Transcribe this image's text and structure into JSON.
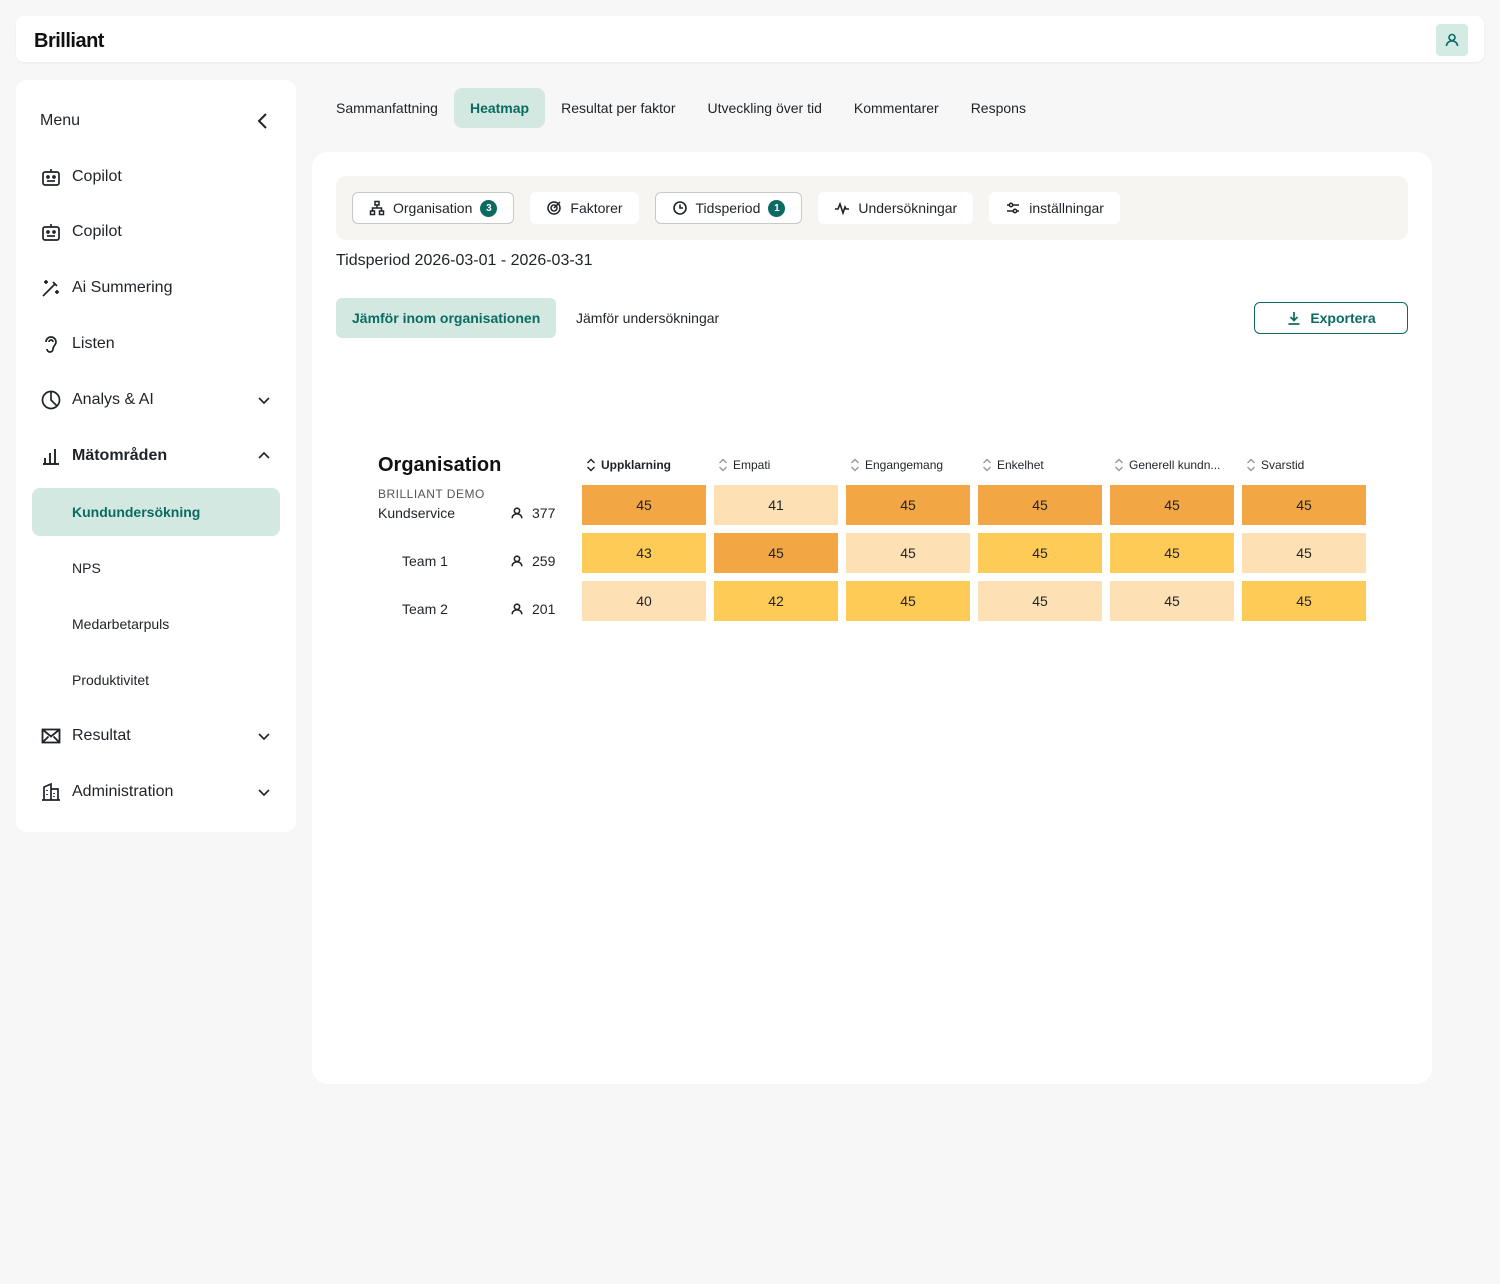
{
  "app": {
    "logo": "Brilliant"
  },
  "header": {
    "avatar_icon": "user-icon"
  },
  "sidebar": {
    "menu_label": "Menu",
    "items": [
      {
        "label": "Copilot",
        "icon": "robot-icon"
      },
      {
        "label": "Copilot",
        "icon": "robot-icon"
      },
      {
        "label": "Ai Summering",
        "icon": "magic-wand-icon"
      },
      {
        "label": "Listen",
        "icon": "ear-icon"
      },
      {
        "label": "Analys & AI",
        "icon": "pie-chart-icon"
      },
      {
        "label": "Mätområden",
        "icon": "bar-chart-icon"
      },
      {
        "label": "Resultat",
        "icon": "envelope-icon"
      },
      {
        "label": "Administration",
        "icon": "building-icon"
      }
    ],
    "sub_items": [
      "Kundundersökning",
      "NPS",
      "Medarbetarpuls",
      "Produktivitet"
    ]
  },
  "tabs": [
    "Sammanfattning",
    "Heatmap",
    "Resultat per faktor",
    "Utveckling över tid",
    "Kommentarer",
    "Respons"
  ],
  "filters": [
    {
      "label": "Organisation",
      "badge": "3",
      "icon": "hierarchy-icon"
    },
    {
      "label": "Faktorer",
      "badge": "",
      "icon": "target-icon"
    },
    {
      "label": "Tidsperiod",
      "badge": "1",
      "icon": "clock-icon"
    },
    {
      "label": "Undersökningar",
      "badge": "",
      "icon": "activity-icon"
    },
    {
      "label": "inställningar",
      "badge": "",
      "icon": "sliders-icon"
    }
  ],
  "period_text": "Tidsperiod 2026-03-01 - 2026-03-31",
  "compare": {
    "within_org": "Jämför inom organisationen",
    "surveys": "Jämför undersökningar"
  },
  "export_label": "Exportera",
  "heatmap": {
    "org_title": "Organisation",
    "org_parent": "BRILLIANT DEMO",
    "columns": [
      "Uppklarning",
      "Empati",
      "Engangemang",
      "Enkelhet",
      "Generell kundn...",
      "Svarstid"
    ],
    "rows": [
      {
        "name": "Kundservice",
        "count": "377",
        "values": [
          "45",
          "41",
          "45",
          "45",
          "45",
          "45"
        ]
      },
      {
        "name": "Team 1",
        "count": "259",
        "values": [
          "43",
          "45",
          "45",
          "45",
          "45",
          "45"
        ]
      },
      {
        "name": "Team 2",
        "count": "201",
        "values": [
          "40",
          "42",
          "45",
          "45",
          "45",
          "45"
        ]
      }
    ],
    "cell_colors": [
      [
        "#f2a744",
        "#fde0b4",
        "#f2a744",
        "#f2a744",
        "#f2a744",
        "#f2a744"
      ],
      [
        "#fecb57",
        "#f2a744",
        "#fde0b4",
        "#fecb57",
        "#fecb57",
        "#fde0b4"
      ],
      [
        "#fde0b4",
        "#fecb57",
        "#fecb57",
        "#fde0b4",
        "#fde0b4",
        "#fecb57"
      ]
    ]
  }
}
